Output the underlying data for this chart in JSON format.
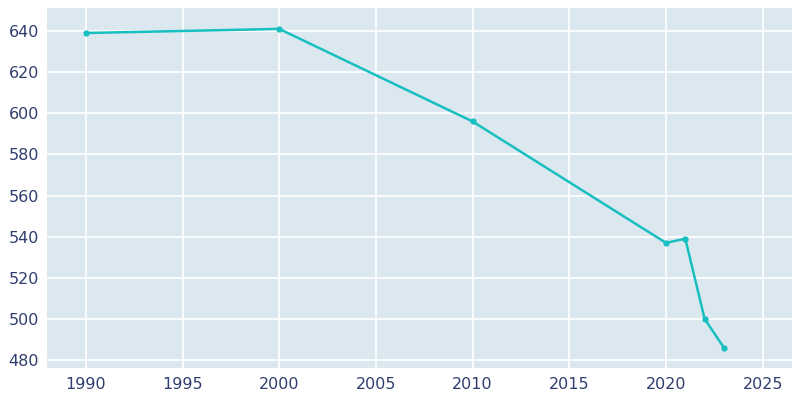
{
  "years": [
    1990,
    2000,
    2010,
    2020,
    2021,
    2022,
    2023
  ],
  "population": [
    639,
    641,
    596,
    537,
    539,
    500,
    486
  ],
  "line_color": "#17BFC0",
  "marker": "o",
  "marker_size": 3.5,
  "line_width": 1.8,
  "plot_bg_color": "#DCE8F0",
  "fig_bg_color": "#FFFFFF",
  "grid_color": "#FFFFFF",
  "xlim": [
    1988,
    2026.5
  ],
  "ylim": [
    476,
    651
  ],
  "xticks": [
    1990,
    1995,
    2000,
    2005,
    2010,
    2015,
    2020,
    2025
  ],
  "yticks": [
    480,
    500,
    520,
    540,
    560,
    580,
    600,
    620,
    640
  ],
  "tick_color": "#2F3E6E",
  "tick_fontsize": 11.5
}
